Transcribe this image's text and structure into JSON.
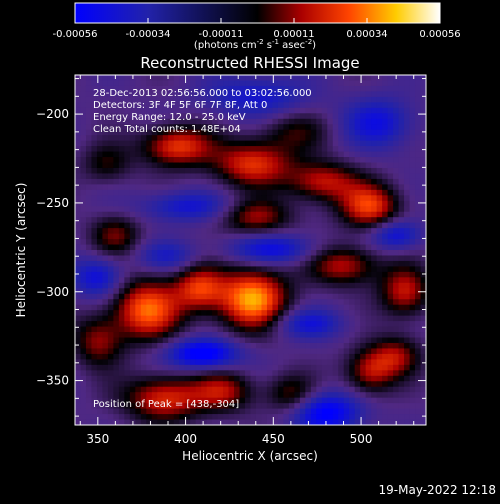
{
  "chart_data": {
    "type": "heatmap",
    "title": "Reconstructed RHESSI Image",
    "xlabel": "Heliocentric X (arcsec)",
    "ylabel": "Heliocentric Y (arcsec)",
    "xlim": [
      337,
      537
    ],
    "ylim": [
      -375,
      -178
    ],
    "xticks": [
      350,
      400,
      450,
      500
    ],
    "yticks": [
      -200,
      -250,
      -300,
      -350
    ],
    "info_lines": [
      "28-Dec-2013 02:56:56.000 to 03:02:56.000",
      "Detectors: 3F 4F 5F 6F 7F 8F, Att 0",
      "Energy Range: 12.0 - 25.0 keV",
      "Clean     Total counts: 1.48E+04"
    ],
    "peak_label": "Position of Peak = [438,-304]",
    "peak": [
      438,
      -304
    ],
    "colorbar": {
      "ticks": [
        "-0.00056",
        "-0.00034",
        "-0.00011",
        "0.00011",
        "0.00034",
        "0.00056"
      ],
      "range": [
        -0.00056,
        0.00056
      ],
      "unit_label": "(photons cm",
      "unit_sup1": "-2",
      "unit_mid": " s",
      "unit_sup2": "-1",
      "unit_end": " asec",
      "unit_sup3": "-2",
      "unit_close": ")"
    },
    "blobs": [
      {
        "x": 438,
        "y": -304,
        "amp": 0.00056,
        "sx": 14,
        "sy": 12
      },
      {
        "x": 378,
        "y": -310,
        "amp": 0.00048,
        "sx": 14,
        "sy": 12
      },
      {
        "x": 408,
        "y": -298,
        "amp": 0.00038,
        "sx": 10,
        "sy": 9
      },
      {
        "x": 395,
        "y": -218,
        "amp": 0.00042,
        "sx": 14,
        "sy": 8
      },
      {
        "x": 438,
        "y": -228,
        "amp": 0.0004,
        "sx": 16,
        "sy": 9
      },
      {
        "x": 478,
        "y": -238,
        "amp": 0.00035,
        "sx": 14,
        "sy": 8
      },
      {
        "x": 505,
        "y": -252,
        "amp": 0.00042,
        "sx": 12,
        "sy": 9
      },
      {
        "x": 440,
        "y": -258,
        "amp": 0.0003,
        "sx": 14,
        "sy": 7
      },
      {
        "x": 360,
        "y": -268,
        "amp": 0.00025,
        "sx": 10,
        "sy": 8
      },
      {
        "x": 490,
        "y": -285,
        "amp": 0.00034,
        "sx": 14,
        "sy": 8
      },
      {
        "x": 525,
        "y": -300,
        "amp": 0.00036,
        "sx": 10,
        "sy": 10
      },
      {
        "x": 520,
        "y": -336,
        "amp": 0.00028,
        "sx": 10,
        "sy": 8
      },
      {
        "x": 388,
        "y": -360,
        "amp": 0.0004,
        "sx": 16,
        "sy": 9
      },
      {
        "x": 422,
        "y": -356,
        "amp": 0.0003,
        "sx": 12,
        "sy": 8
      },
      {
        "x": 460,
        "y": -358,
        "amp": 0.00025,
        "sx": 10,
        "sy": 8
      },
      {
        "x": 505,
        "y": -345,
        "amp": 0.00033,
        "sx": 10,
        "sy": 9
      },
      {
        "x": 350,
        "y": -328,
        "amp": 0.00028,
        "sx": 10,
        "sy": 10
      },
      {
        "x": 355,
        "y": -228,
        "amp": 0.0002,
        "sx": 10,
        "sy": 8
      },
      {
        "x": 462,
        "y": -210,
        "amp": 0.00018,
        "sx": 14,
        "sy": 8
      },
      {
        "x": 410,
        "y": -335,
        "amp": -0.00045,
        "sx": 14,
        "sy": 6
      },
      {
        "x": 450,
        "y": -276,
        "amp": -0.0003,
        "sx": 18,
        "sy": 6
      },
      {
        "x": 400,
        "y": -252,
        "amp": -0.00025,
        "sx": 18,
        "sy": 6
      },
      {
        "x": 350,
        "y": -292,
        "amp": -0.0003,
        "sx": 10,
        "sy": 8
      },
      {
        "x": 480,
        "y": -368,
        "amp": -0.0004,
        "sx": 14,
        "sy": 8
      },
      {
        "x": 510,
        "y": -205,
        "amp": -0.00028,
        "sx": 14,
        "sy": 10
      },
      {
        "x": 440,
        "y": -190,
        "amp": -0.00025,
        "sx": 20,
        "sy": 8
      },
      {
        "x": 520,
        "y": -268,
        "amp": -0.0003,
        "sx": 10,
        "sy": 6
      },
      {
        "x": 470,
        "y": -318,
        "amp": -0.00025,
        "sx": 14,
        "sy": 6
      },
      {
        "x": 390,
        "y": -280,
        "amp": -0.0002,
        "sx": 12,
        "sy": 6
      }
    ]
  },
  "footer": {
    "date": "19-May-2022 12:18"
  }
}
